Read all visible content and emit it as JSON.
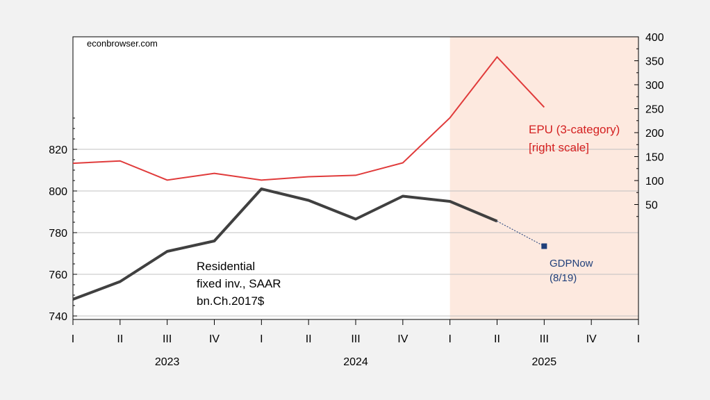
{
  "chart_data": {
    "type": "line",
    "source_note": "econbrowser.com",
    "x_quarters": [
      "2023Q1",
      "2023Q2",
      "2023Q3",
      "2023Q4",
      "2024Q1",
      "2024Q2",
      "2024Q3",
      "2024Q4",
      "2025Q1",
      "2025Q2",
      "2025Q3",
      "2025Q4",
      "2026Q1"
    ],
    "x_tick_labels": [
      "I",
      "II",
      "III",
      "IV",
      "I",
      "II",
      "III",
      "IV",
      "I",
      "II",
      "III",
      "IV",
      "I"
    ],
    "year_labels": [
      "2023",
      "2024",
      "2025"
    ],
    "left_axis": {
      "ticks": [
        740,
        760,
        780,
        800,
        820
      ]
    },
    "right_axis": {
      "ticks": [
        50,
        100,
        150,
        200,
        250,
        300,
        350,
        400
      ]
    },
    "shaded_region": {
      "from": "2025Q1",
      "to": "2026Q1",
      "color": "#fde9df"
    },
    "series": [
      {
        "name": "EPU (3-category) [right scale]",
        "label_lines": [
          "EPU (3-category)",
          "[right scale]"
        ],
        "axis": "right",
        "color": "#e03a3a",
        "x": [
          "2023Q1",
          "2023Q2",
          "2023Q3",
          "2023Q4",
          "2024Q1",
          "2024Q2",
          "2024Q3",
          "2024Q4",
          "2025Q1",
          "2025Q2",
          "2025Q3"
        ],
        "values": [
          136,
          141,
          101,
          115,
          101,
          108,
          111,
          137,
          231,
          358,
          253
        ]
      },
      {
        "name": "Residential fixed inv., SAAR bn.Ch.2017$",
        "label_lines": [
          "Residential",
          "fixed inv., SAAR",
          "bn.Ch.2017$"
        ],
        "axis": "left",
        "color": "#404040",
        "x": [
          "2023Q1",
          "2023Q2",
          "2023Q3",
          "2023Q4",
          "2024Q1",
          "2024Q2",
          "2024Q3",
          "2024Q4",
          "2025Q1",
          "2025Q2"
        ],
        "values": [
          748,
          756.5,
          771,
          776,
          801,
          795.5,
          786.5,
          797.5,
          795,
          785.5
        ]
      },
      {
        "name": "GDPNow (8/19)",
        "label_lines": [
          "GDPNow",
          "(8/19)"
        ],
        "axis": "left",
        "color": "#1f3f7a",
        "x": [
          "2025Q2",
          "2025Q3"
        ],
        "values": [
          785.5,
          773.5
        ]
      }
    ]
  }
}
